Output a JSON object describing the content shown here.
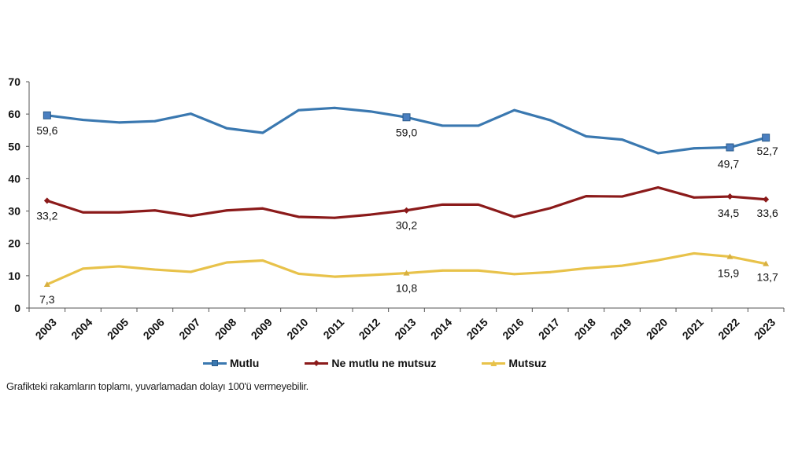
{
  "chart_data": {
    "type": "line",
    "title": "",
    "xlabel": "",
    "ylabel": "",
    "ylim": [
      0,
      70
    ],
    "yticks": [
      0,
      10,
      20,
      30,
      40,
      50,
      60,
      70
    ],
    "grid": false,
    "legend_position": "bottom",
    "x": [
      "2003",
      "2004",
      "2005",
      "2006",
      "2007",
      "2008",
      "2009",
      "2010",
      "2011",
      "2012",
      "2013",
      "2014",
      "2015",
      "2016",
      "2017",
      "2018",
      "2019",
      "2020",
      "2021",
      "2022",
      "2023"
    ],
    "series": [
      {
        "name": "Mutlu",
        "color": "#3a78b0",
        "marker": "square",
        "values": [
          59.6,
          58.2,
          57.4,
          57.8,
          60.1,
          55.6,
          54.2,
          61.2,
          61.9,
          60.8,
          59.0,
          56.4,
          56.4,
          61.2,
          58.1,
          53.1,
          52.1,
          47.9,
          49.4,
          49.7,
          52.7
        ],
        "labeled_points": [
          {
            "x": "2003",
            "label": "59,6"
          },
          {
            "x": "2013",
            "label": "59,0"
          },
          {
            "x": "2022",
            "label": "49,7"
          },
          {
            "x": "2023",
            "label": "52,7"
          }
        ]
      },
      {
        "name": "Ne mutlu ne mutsuz",
        "color": "#8b1a1a",
        "marker": "diamond",
        "values": [
          33.2,
          29.6,
          29.6,
          30.2,
          28.5,
          30.2,
          30.8,
          28.2,
          27.9,
          28.9,
          30.2,
          32.0,
          32.0,
          28.2,
          30.9,
          34.6,
          34.5,
          37.3,
          34.2,
          34.5,
          33.6
        ],
        "labeled_points": [
          {
            "x": "2003",
            "label": "33,2"
          },
          {
            "x": "2013",
            "label": "30,2"
          },
          {
            "x": "2022",
            "label": "34,5"
          },
          {
            "x": "2023",
            "label": "33,6"
          }
        ]
      },
      {
        "name": "Mutsuz",
        "color": "#e8c24a",
        "marker": "triangle",
        "values": [
          7.3,
          12.2,
          12.9,
          11.9,
          11.2,
          14.1,
          14.7,
          10.6,
          9.7,
          10.2,
          10.8,
          11.6,
          11.6,
          10.5,
          11.1,
          12.3,
          13.1,
          14.8,
          16.9,
          15.9,
          13.7
        ],
        "labeled_points": [
          {
            "x": "2003",
            "label": "7,3"
          },
          {
            "x": "2013",
            "label": "10,8"
          },
          {
            "x": "2022",
            "label": "15,9"
          },
          {
            "x": "2023",
            "label": "13,7"
          }
        ]
      }
    ],
    "footnote": "Grafikteki rakamların toplamı, yuvarlamadan dolayı 100'ü vermeyebilir."
  },
  "legend": {
    "items": [
      {
        "label": "Mutlu"
      },
      {
        "label": "Ne mutlu ne mutsuz"
      },
      {
        "label": "Mutsuz"
      }
    ]
  }
}
